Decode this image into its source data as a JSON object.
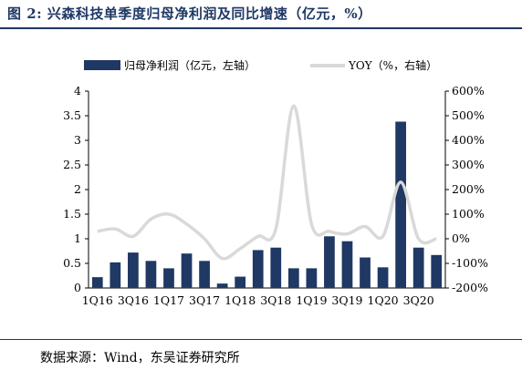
{
  "title": "图 2: 兴森科技单季度归母净利润及同比增速（亿元，%）",
  "source": "数据来源：Wind，东吴证券研究所",
  "chart_data": {
    "type": "bar",
    "categories": [
      "1Q16",
      "2Q16",
      "3Q16",
      "4Q16",
      "1Q17",
      "2Q17",
      "3Q17",
      "4Q17",
      "1Q18",
      "2Q18",
      "3Q18",
      "4Q18",
      "1Q19",
      "2Q19",
      "3Q19",
      "4Q19",
      "1Q20",
      "2Q20",
      "3Q20",
      "4Q20"
    ],
    "x_tick_labels": [
      "1Q16",
      "3Q16",
      "1Q17",
      "3Q17",
      "1Q18",
      "3Q18",
      "1Q19",
      "3Q19",
      "1Q20",
      "3Q20"
    ],
    "series": [
      {
        "name": "归母净利润（亿元，左轴）",
        "type": "bar",
        "axis": "left",
        "color": "#1f3864",
        "values": [
          0.22,
          0.52,
          0.72,
          0.55,
          0.4,
          0.7,
          0.55,
          0.09,
          0.23,
          0.77,
          0.82,
          0.4,
          0.4,
          1.05,
          0.95,
          0.62,
          0.42,
          3.38,
          0.82,
          0.67
        ]
      },
      {
        "name": "YOY（%，右轴）",
        "type": "line",
        "axis": "right",
        "color": "#d9d9d9",
        "values": [
          30,
          40,
          10,
          80,
          100,
          60,
          0,
          -80,
          -40,
          10,
          40,
          540,
          60,
          30,
          20,
          50,
          10,
          230,
          0,
          0
        ]
      }
    ],
    "y_left": {
      "min": 0,
      "max": 4,
      "ticks": [
        "0",
        "0.5",
        "1",
        "1.5",
        "2",
        "2.5",
        "3",
        "3.5",
        "4"
      ]
    },
    "y_right": {
      "min": -200,
      "max": 600,
      "ticks": [
        "-200%",
        "-100%",
        "0%",
        "100%",
        "200%",
        "300%",
        "400%",
        "500%",
        "600%"
      ]
    }
  }
}
